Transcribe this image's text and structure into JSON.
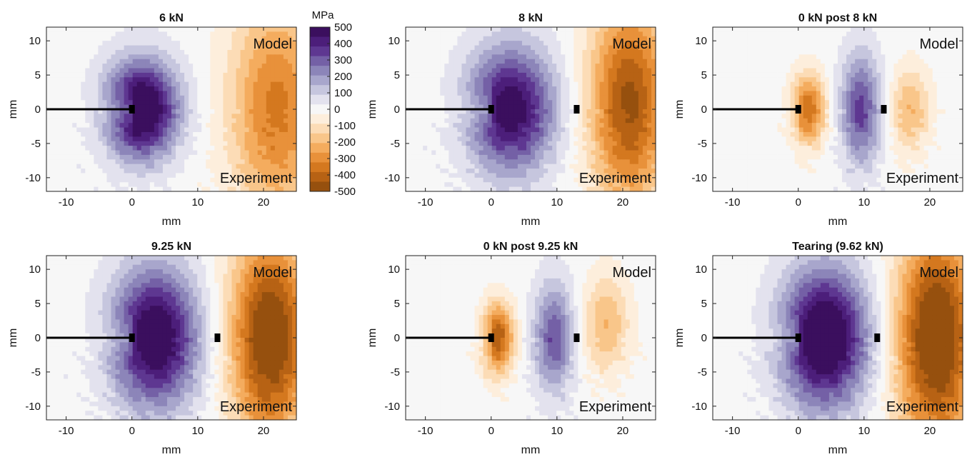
{
  "chart_data": {
    "type": "heatmap",
    "figure": {
      "colorbar": {
        "title": "MPa",
        "ticks": [
          500,
          400,
          300,
          200,
          100,
          0,
          -100,
          -200,
          -300,
          -400,
          -500
        ],
        "tick_labels": [
          "500",
          "400",
          "300",
          "200",
          "100",
          "0",
          "-100",
          "-200",
          "-300",
          "-400",
          "-500"
        ],
        "colors": [
          "#3b0f5e",
          "#4c1e7a",
          "#5e3791",
          "#7460a6",
          "#8c85b9",
          "#a8a6cc",
          "#c6c6de",
          "#e3e2ee",
          "#f7f7f7",
          "#fdeedc",
          "#fcdcb6",
          "#f9c68a",
          "#f4ac5e",
          "#e8913a",
          "#d4781f",
          "#b76214",
          "#96500e"
        ]
      },
      "panels": [
        {
          "id": "p1",
          "title": "6 kN",
          "xlabel": "mm",
          "ylabel": "mm",
          "xlim": [
            -13,
            25
          ],
          "ylim": [
            -12,
            12
          ],
          "xticks": [
            -10,
            0,
            10,
            20
          ],
          "xtick_labels": [
            "-10",
            "0",
            "10",
            "20"
          ],
          "yticks": [
            10,
            5,
            0,
            -5,
            -10
          ],
          "ytick_labels": [
            "10",
            "5",
            "0",
            "-5",
            "-10"
          ],
          "labels": {
            "top": "Model",
            "bottom": "Experiment"
          },
          "crack_tips": [
            0
          ],
          "sources": [
            {
              "x": 1.5,
              "y": 0,
              "amp": 560,
              "sx": 5.5,
              "sy": 7
            },
            {
              "x": 22,
              "y": 0,
              "amp": -330,
              "sx": 7,
              "sy": 16
            }
          ]
        },
        {
          "id": "p2",
          "title": "8 kN",
          "xlabel": "mm",
          "ylabel": "mm",
          "xlim": [
            -13,
            25
          ],
          "ylim": [
            -12,
            12
          ],
          "xticks": [
            -10,
            0,
            10,
            20
          ],
          "xtick_labels": [
            "-10",
            "0",
            "10",
            "20"
          ],
          "yticks": [
            10,
            5,
            0,
            -5,
            -10
          ],
          "ytick_labels": [
            "10",
            "5",
            "0",
            "-5",
            "-10"
          ],
          "labels": {
            "top": "Model",
            "bottom": "Experiment"
          },
          "crack_tips": [
            0,
            13
          ],
          "sources": [
            {
              "x": 3,
              "y": 0,
              "amp": 480,
              "sx": 6.5,
              "sy": 9
            },
            {
              "x": 21,
              "y": 1,
              "amp": -440,
              "sx": 6,
              "sy": 15
            }
          ]
        },
        {
          "id": "p3",
          "title": "0 kN post 8 kN",
          "xlabel": "mm",
          "ylabel": "mm",
          "xlim": [
            -13,
            25
          ],
          "ylim": [
            -12,
            12
          ],
          "xticks": [
            -10,
            0,
            10,
            20
          ],
          "xtick_labels": [
            "-10",
            "0",
            "10",
            "20"
          ],
          "yticks": [
            10,
            5,
            0,
            -5,
            -10
          ],
          "ytick_labels": [
            "10",
            "5",
            "0",
            "-5",
            "-10"
          ],
          "labels": {
            "top": "Model",
            "bottom": "Experiment"
          },
          "crack_tips": [
            0,
            13
          ],
          "sources": [
            {
              "x": 1.5,
              "y": 0,
              "amp": -360,
              "sx": 2.6,
              "sy": 5
            },
            {
              "x": 9.5,
              "y": 0,
              "amp": 330,
              "sx": 3,
              "sy": 8
            },
            {
              "x": 17,
              "y": 0,
              "amp": -200,
              "sx": 3,
              "sy": 6
            }
          ]
        },
        {
          "id": "p4",
          "title": "9.25 kN",
          "xlabel": "mm",
          "ylabel": "mm",
          "xlim": [
            -13,
            25
          ],
          "ylim": [
            -12,
            12
          ],
          "xticks": [
            -10,
            0,
            10,
            20
          ],
          "xtick_labels": [
            "-10",
            "0",
            "10",
            "20"
          ],
          "yticks": [
            10,
            5,
            0,
            -5,
            -10
          ],
          "ytick_labels": [
            "10",
            "5",
            "0",
            "-5",
            "-10"
          ],
          "labels": {
            "top": "Model",
            "bottom": "Experiment"
          },
          "crack_tips": [
            0,
            13
          ],
          "sources": [
            {
              "x": 3.5,
              "y": 0,
              "amp": 520,
              "sx": 6.5,
              "sy": 10
            },
            {
              "x": 21,
              "y": 0,
              "amp": -520,
              "sx": 6,
              "sy": 15
            }
          ]
        },
        {
          "id": "p5",
          "title": "0 kN post 9.25 kN",
          "xlabel": "mm",
          "ylabel": "mm",
          "xlim": [
            -13,
            25
          ],
          "ylim": [
            -12,
            12
          ],
          "xticks": [
            -10,
            0,
            10,
            20
          ],
          "xtick_labels": [
            "-10",
            "0",
            "10",
            "20"
          ],
          "yticks": [
            10,
            5,
            0,
            -5,
            -10
          ],
          "ytick_labels": [
            "10",
            "5",
            "0",
            "-5",
            "-10"
          ],
          "labels": {
            "top": "Model",
            "bottom": "Experiment"
          },
          "crack_tips": [
            0,
            13
          ],
          "sources": [
            {
              "x": 1,
              "y": 0,
              "amp": -420,
              "sx": 2.4,
              "sy": 5
            },
            {
              "x": 9.5,
              "y": 0,
              "amp": 300,
              "sx": 3,
              "sy": 8
            },
            {
              "x": 17.5,
              "y": 2,
              "amp": -200,
              "sx": 3.5,
              "sy": 7
            }
          ]
        },
        {
          "id": "p6",
          "title": "Tearing (9.62 kN)",
          "xlabel": "mm",
          "ylabel": "mm",
          "xlim": [
            -13,
            25
          ],
          "ylim": [
            -12,
            12
          ],
          "xticks": [
            -10,
            0,
            10,
            20
          ],
          "xtick_labels": [
            "-10",
            "0",
            "10",
            "20"
          ],
          "yticks": [
            10,
            5,
            0,
            -5,
            -10
          ],
          "ytick_labels": [
            "10",
            "5",
            "0",
            "-5",
            "-10"
          ],
          "labels": {
            "top": "Model",
            "bottom": "Experiment"
          },
          "crack_tips": [
            0,
            12
          ],
          "sources": [
            {
              "x": 4,
              "y": 0,
              "amp": 560,
              "sx": 6.5,
              "sy": 10
            },
            {
              "x": 21,
              "y": 0,
              "amp": -540,
              "sx": 6,
              "sy": 16
            }
          ]
        }
      ]
    }
  }
}
